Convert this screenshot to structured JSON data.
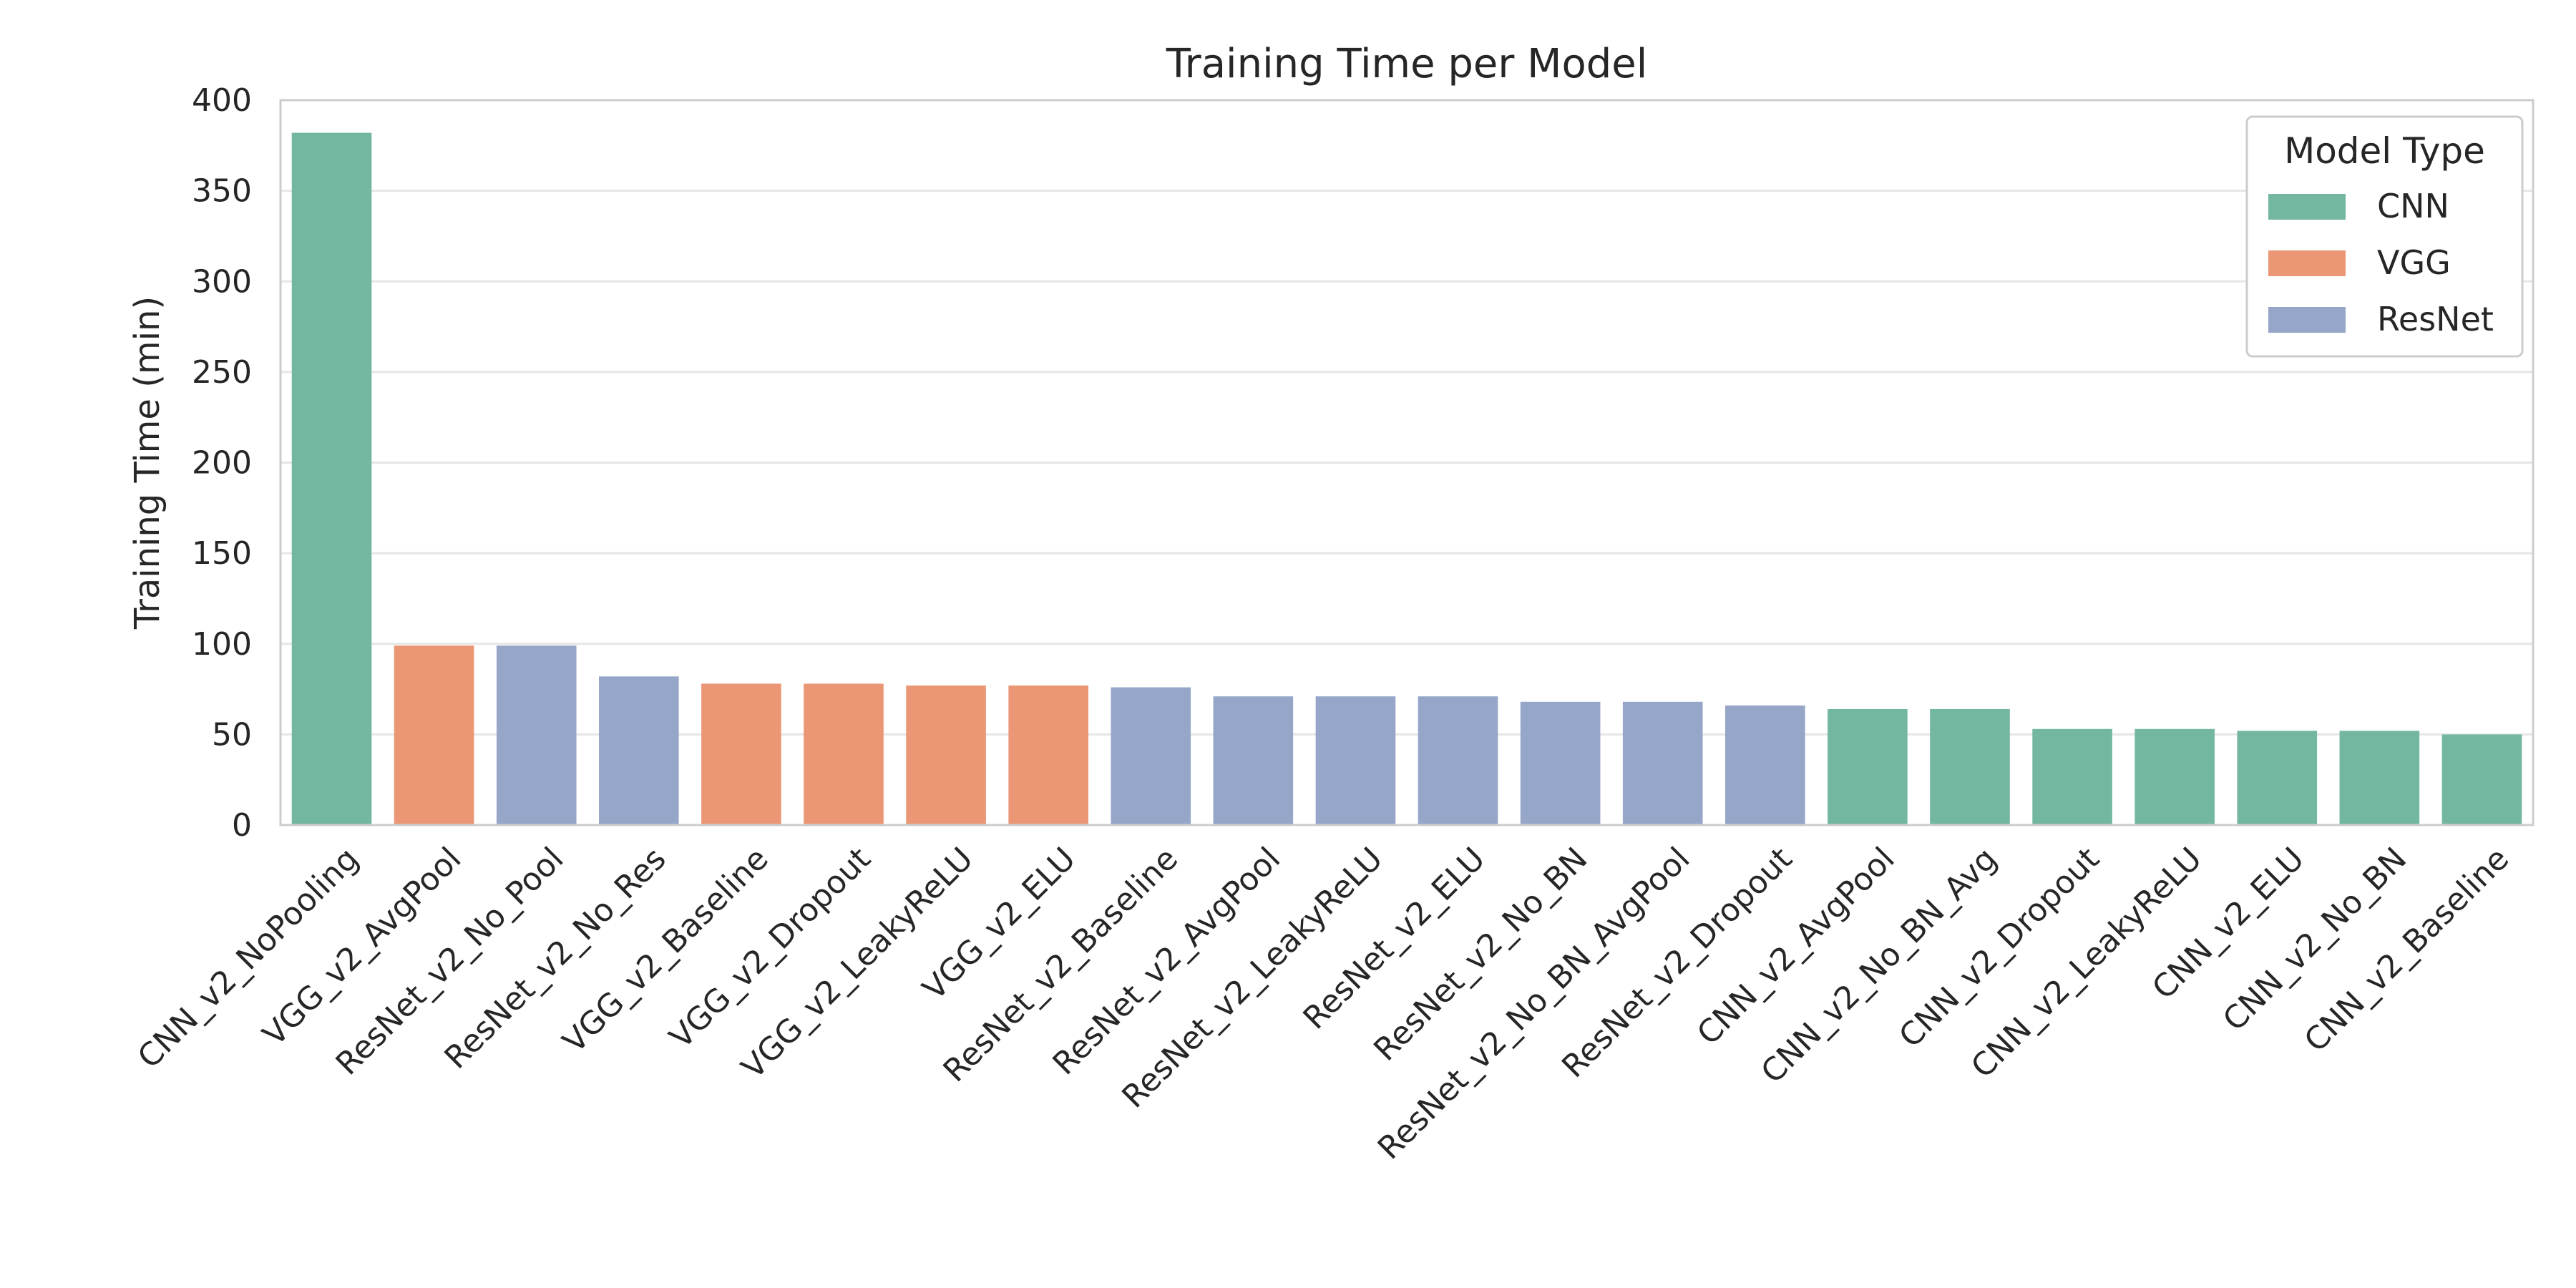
{
  "chart_data": {
    "type": "bar",
    "title": "Training Time per Model",
    "xlabel": "",
    "ylabel": "Training Time (min)",
    "ylim": [
      0,
      400
    ],
    "yticks": [
      0,
      50,
      100,
      150,
      200,
      250,
      300,
      350,
      400
    ],
    "grid": true,
    "legend": {
      "title": "Model Type",
      "placement": "top-right",
      "entries": [
        {
          "label": "CNN",
          "color": "#73b7a0"
        },
        {
          "label": "VGG",
          "color": "#eb9775"
        },
        {
          "label": "ResNet",
          "color": "#96a6c8"
        }
      ]
    },
    "categories": [
      "CNN_v2_NoPooling",
      "VGG_v2_AvgPool",
      "ResNet_v2_No_Pool",
      "ResNet_v2_No_Res",
      "VGG_v2_Baseline",
      "VGG_v2_Dropout",
      "VGG_v2_LeakyReLU",
      "VGG_v2_ELU",
      "ResNet_v2_Baseline",
      "ResNet_v2_AvgPool",
      "ResNet_v2_LeakyReLU",
      "ResNet_v2_ELU",
      "ResNet_v2_No_BN",
      "ResNet_v2_No_BN_AvgPool",
      "ResNet_v2_Dropout",
      "CNN_v2_AvgPool",
      "CNN_v2_No_BN_Avg",
      "CNN_v2_Dropout",
      "CNN_v2_LeakyReLU",
      "CNN_v2_ELU",
      "CNN_v2_No_BN",
      "CNN_v2_Baseline"
    ],
    "groups": [
      "CNN",
      "VGG",
      "ResNet",
      "ResNet",
      "VGG",
      "VGG",
      "VGG",
      "VGG",
      "ResNet",
      "ResNet",
      "ResNet",
      "ResNet",
      "ResNet",
      "ResNet",
      "ResNet",
      "CNN",
      "CNN",
      "CNN",
      "CNN",
      "CNN",
      "CNN",
      "CNN"
    ],
    "values": [
      382,
      99,
      99,
      82,
      78,
      78,
      77,
      77,
      76,
      71,
      71,
      71,
      68,
      68,
      66,
      64,
      64,
      53,
      53,
      52,
      52,
      50
    ]
  }
}
